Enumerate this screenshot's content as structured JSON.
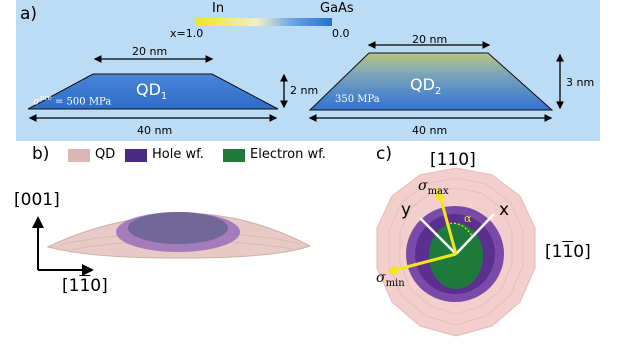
{
  "panel_a": {
    "label": "a)",
    "colorbar": {
      "left_label": "In",
      "right_label": "GaAs",
      "left_value": "x=1.0",
      "right_value": "0.0",
      "colors": [
        "#f4e51c",
        "#2470d0"
      ]
    },
    "qd1": {
      "name": "QD",
      "subscript": "1",
      "top_width": "20 nm",
      "bottom_width": "40 nm",
      "height": "2 nm",
      "stress": "σ",
      "stress_sup": "pre",
      "stress_value": " = 500 MPa"
    },
    "qd2": {
      "name": "QD",
      "subscript": "2",
      "top_width": "20 nm",
      "bottom_width": "40 nm",
      "height": "3 nm",
      "stress_value": "350 MPa"
    }
  },
  "panel_b": {
    "label": "b)",
    "legend": [
      {
        "label": "QD",
        "color": "#d9b7b4"
      },
      {
        "label": "Hole wf.",
        "color": "#4a2a86"
      },
      {
        "label": "Electron wf.",
        "color": "#1e7a3a"
      }
    ],
    "axis_vertical": "[001]",
    "axis_horizontal": "[1",
    "axis_horizontal_bar": "1",
    "axis_horizontal_end": "0]"
  },
  "panel_c": {
    "label": "c)",
    "axis_top": "[110]",
    "axis_right": "[1",
    "axis_right_bar": "1",
    "axis_right_end": "0]",
    "sigma_max": "σ",
    "sigma_max_sub": "max",
    "sigma_min": "σ",
    "sigma_min_sub": "min",
    "x_label": "x",
    "y_label": "y",
    "alpha": "α"
  }
}
